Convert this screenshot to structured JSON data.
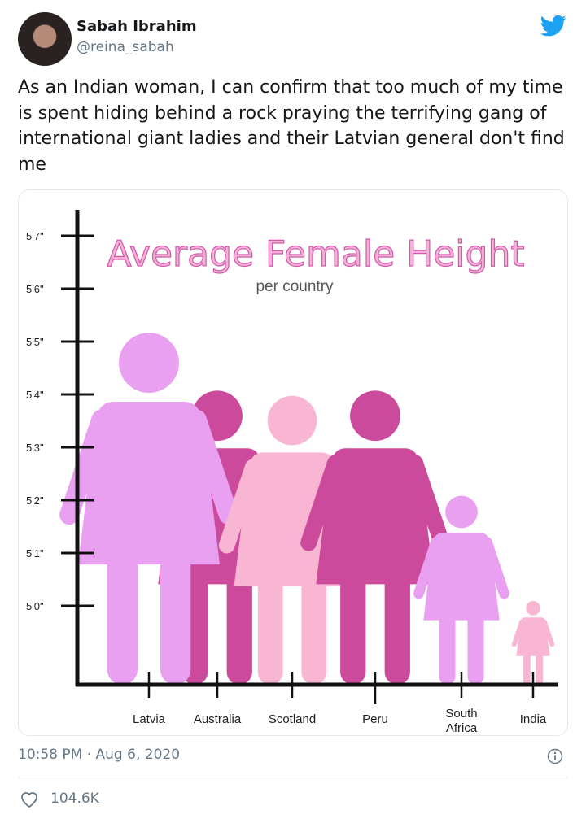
{
  "tweet": {
    "author_name": "Sabah Ibrahim",
    "handle": "@reina_sabah",
    "text": "As an Indian woman, I can confirm that too much of my time is spent hiding behind a rock praying the terrifying gang of international giant ladies and their Latvian general don't find me",
    "timestamp": "10:58 PM · Aug 6, 2020",
    "likes": "104.6K",
    "brand_color": "#1da1f2",
    "icons": {
      "brand": "twitter-bird-icon",
      "info": "info-icon",
      "like": "heart-icon"
    }
  },
  "chart_data": {
    "type": "bar",
    "style": "pictogram",
    "title": "Average Female Height",
    "subtitle": "per country",
    "categories": [
      "Latvia",
      "Australia",
      "Scotland",
      "Peru",
      "South Africa",
      "India"
    ],
    "values_inches": [
      65.2,
      64.1,
      64.0,
      64.1,
      62.1,
      60.1
    ],
    "colors": [
      "#eaa0f0",
      "#cc4a9c",
      "#f9b6d3",
      "#cc4a9c",
      "#eaa0f0",
      "#f9b6d3"
    ],
    "y_ticks": [
      {
        "label": "5'7\"",
        "value": 67
      },
      {
        "label": "5'6\"",
        "value": 66
      },
      {
        "label": "5'5\"",
        "value": 65
      },
      {
        "label": "5'4\"",
        "value": 64
      },
      {
        "label": "5'3\"",
        "value": 63
      },
      {
        "label": "5'2\"",
        "value": 62
      },
      {
        "label": "5'1\"",
        "value": 61
      },
      {
        "label": "5'0\"",
        "value": 60
      }
    ],
    "title_color": "#e07ac0",
    "grid": false
  }
}
